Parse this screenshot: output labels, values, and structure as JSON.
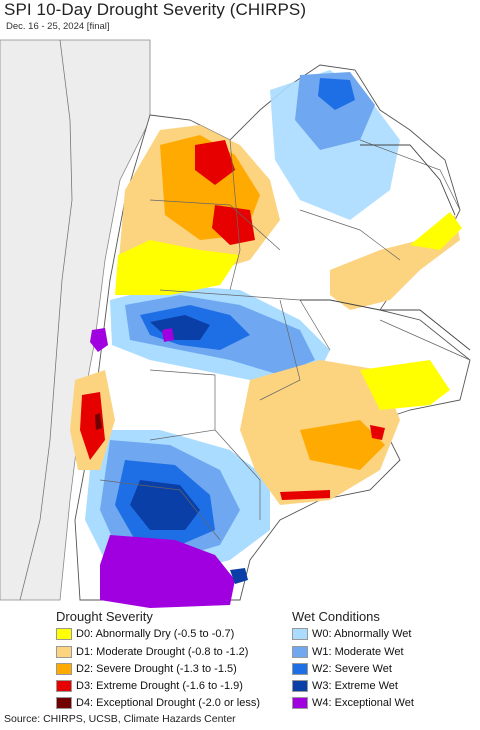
{
  "title": "SPI 10-Day Drought Severity (CHIRPS)",
  "subtitle": "Dec. 16 - 25, 2024 [final]",
  "legend": {
    "drought_heading": "Drought Severity",
    "wet_heading": "Wet Conditions",
    "drought": [
      {
        "label": "D0: Abnormally Dry (-0.5 to -0.7)",
        "color": "#ffff00"
      },
      {
        "label": "D1: Moderate Drought (-0.8 to -1.2)",
        "color": "#fcd37f"
      },
      {
        "label": "D2: Severe Drought (-1.3 to -1.5)",
        "color": "#ffaa00"
      },
      {
        "label": "D3: Extreme Drought (-1.6 to -1.9)",
        "color": "#e60000"
      },
      {
        "label": "D4: Exceptional Drought (-2.0 or less)",
        "color": "#730000"
      }
    ],
    "wet": [
      {
        "label": "W0: Abnormally Wet",
        "color": "#aadcff"
      },
      {
        "label": "W1: Moderate Wet",
        "color": "#6fa8f0"
      },
      {
        "label": "W2: Severe Wet",
        "color": "#1e6fe6"
      },
      {
        "label": "W3: Extreme Wet",
        "color": "#0a3fa8"
      },
      {
        "label": "W4: Exceptional Wet",
        "color": "#a000e0"
      }
    ]
  },
  "source": "Source: CHIRPS, UCSB, Climate Hazards Center",
  "map": {
    "ocean_color": "#ffffff",
    "land_no_data_color": "#ffffff",
    "border_color": "#555555"
  }
}
